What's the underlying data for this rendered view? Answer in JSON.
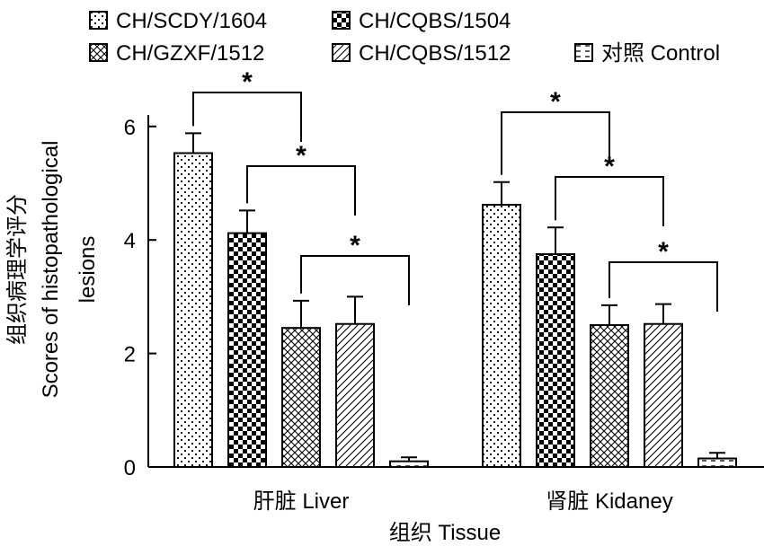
{
  "chart_data": {
    "type": "bar",
    "title": "",
    "xlabel": "组织 Tissue",
    "ylabel": [
      "组织病理学评分",
      "Scores of histopathological",
      "lesions"
    ],
    "ylim": [
      0,
      6.2
    ],
    "yticks": [
      0,
      2,
      4,
      6
    ],
    "categories": [
      "肝脏 Liver",
      "肾脏 Kidaney"
    ],
    "series": [
      {
        "name": "CH/SCDY/1604",
        "pattern": "dots",
        "values": [
          5.53,
          4.62
        ],
        "errors": [
          0.35,
          0.4
        ]
      },
      {
        "name": "CH/CQBS/1504",
        "pattern": "checker",
        "values": [
          4.12,
          3.75
        ],
        "errors": [
          0.4,
          0.47
        ]
      },
      {
        "name": "CH/GZXF/1512",
        "pattern": "cross",
        "values": [
          2.45,
          2.5
        ],
        "errors": [
          0.48,
          0.35
        ]
      },
      {
        "name": "CH/CQBS/1512",
        "pattern": "diag",
        "values": [
          2.52,
          2.52
        ],
        "errors": [
          0.48,
          0.35
        ]
      },
      {
        "name": "对照 Control",
        "pattern": "dash",
        "values": [
          0.1,
          0.15
        ],
        "errors": [
          0.07,
          0.1
        ]
      }
    ],
    "significance_marker": "*",
    "significance_pairs": [
      [
        0,
        2
      ],
      [
        1,
        3
      ],
      [
        2,
        4
      ]
    ],
    "legend_position": "top",
    "grid": false
  }
}
